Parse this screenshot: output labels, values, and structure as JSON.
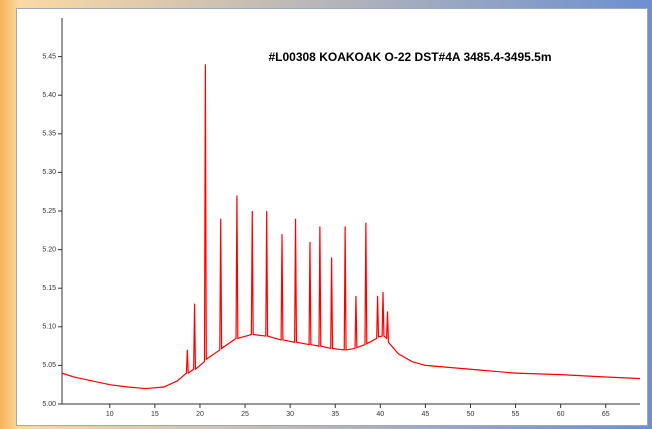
{
  "chart_data": {
    "type": "line",
    "title": "#L00308  KOAKOAK O-22  DST#4A 3485.4-3495.5m",
    "xlim": [
      4.7,
      68.8
    ],
    "xticks": [
      10,
      15,
      20,
      25,
      30,
      35,
      40,
      45,
      50,
      55,
      60,
      65
    ],
    "ylim": [
      5.0,
      5.5
    ],
    "yticks": [
      {
        "value": 5.0,
        "label": "5.00"
      },
      5.05,
      {
        "value": 5.1,
        "label": "5.10"
      },
      5.15,
      {
        "value": 5.2,
        "label": "5.20"
      },
      5.25,
      {
        "value": 5.3,
        "label": "5.30"
      },
      5.35,
      {
        "value": 5.4,
        "label": "5.40"
      },
      5.45
    ],
    "series": [
      {
        "color": "#ff0000",
        "x": [
          4.7,
          6,
          8,
          10,
          12,
          14,
          16,
          17.5,
          18.5,
          18.6,
          18.7,
          19.3,
          19.4,
          19.5,
          20.5,
          20.6,
          20.7,
          22.2,
          22.3,
          22.4,
          24.0,
          24.1,
          24.2,
          25.7,
          25.8,
          25.9,
          27.3,
          27.4,
          27.5,
          29.0,
          29.1,
          29.2,
          30.5,
          30.6,
          30.7,
          32.1,
          32.2,
          32.3,
          33.2,
          33.3,
          33.4,
          34.5,
          34.6,
          34.7,
          36.0,
          36.1,
          36.2,
          37.2,
          37.3,
          37.4,
          38.3,
          38.4,
          38.5,
          39.6,
          39.7,
          39.8,
          40.2,
          40.3,
          40.4,
          40.7,
          40.8,
          40.9,
          42,
          43.5,
          45,
          50,
          55,
          60,
          65,
          68.8
        ],
        "values": [
          5.04,
          5.035,
          5.03,
          5.025,
          5.022,
          5.02,
          5.022,
          5.03,
          5.04,
          5.07,
          5.04,
          5.045,
          5.13,
          5.045,
          5.055,
          5.44,
          5.058,
          5.07,
          5.24,
          5.072,
          5.085,
          5.27,
          5.085,
          5.09,
          5.25,
          5.09,
          5.088,
          5.25,
          5.088,
          5.083,
          5.22,
          5.083,
          5.08,
          5.24,
          5.08,
          5.077,
          5.21,
          5.077,
          5.075,
          5.23,
          5.075,
          5.072,
          5.19,
          5.072,
          5.07,
          5.23,
          5.07,
          5.072,
          5.14,
          5.073,
          5.077,
          5.235,
          5.078,
          5.085,
          5.14,
          5.087,
          5.088,
          5.145,
          5.088,
          5.085,
          5.12,
          5.08,
          5.065,
          5.055,
          5.05,
          5.045,
          5.04,
          5.038,
          5.035,
          5.033
        ]
      }
    ]
  }
}
